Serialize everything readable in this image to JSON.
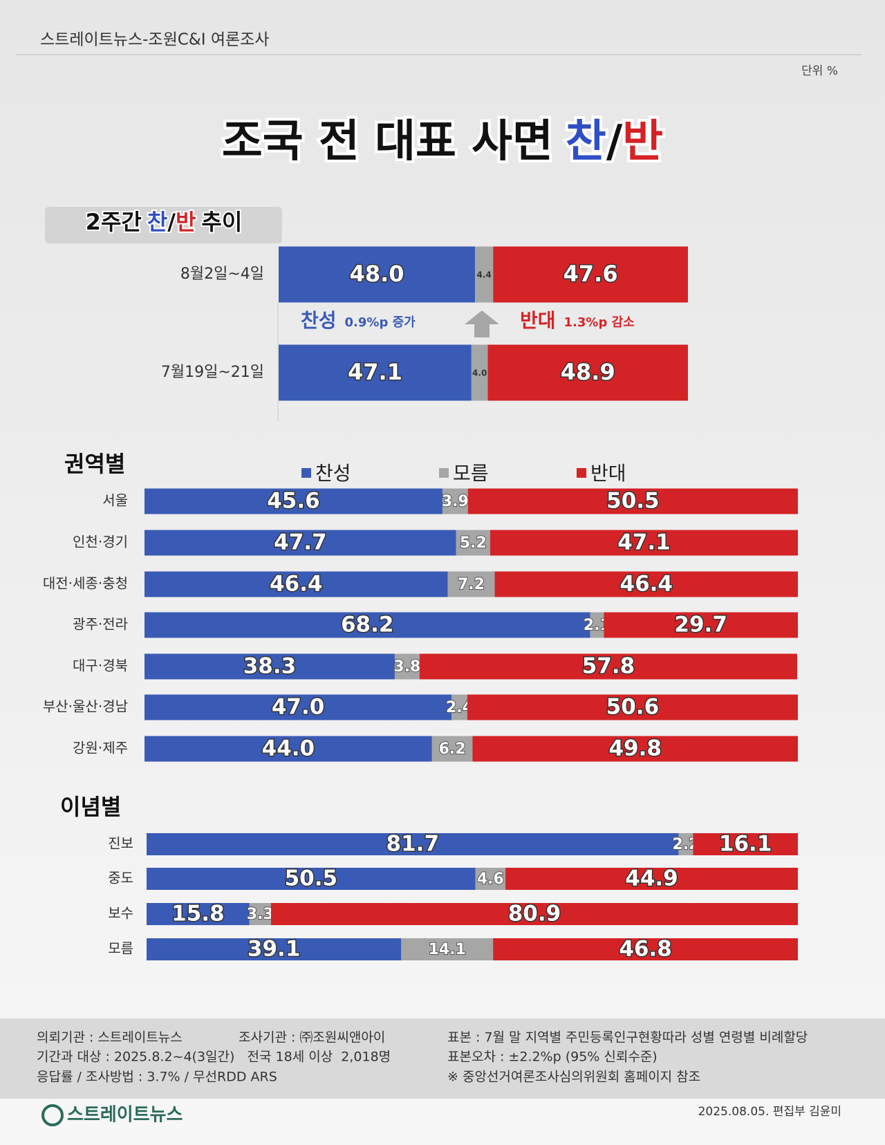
{
  "header": {
    "source": "스트레이트뉴스-조원C&I 여론조사",
    "unit": "단위 %",
    "title": [
      "조국 전 대표 사면",
      "찬",
      "/",
      "반"
    ]
  },
  "chart_data": [
    {
      "type": "stacked_bar",
      "title": [
        "2주간",
        "찬",
        "/",
        "반",
        "추이"
      ],
      "categories": [
        "8월2일~4일",
        "7월19일~21일"
      ],
      "xlim": [
        0,
        100
      ],
      "legend": false,
      "series": [
        {
          "color": "#3a5bb5",
          "values": [
            48.0,
            47.1
          ],
          "value_labels": [
            "48.0",
            "47.1"
          ]
        },
        {
          "color": "#a6a6a6",
          "values": [
            4.4,
            4.0
          ],
          "value_labels": [
            "4.4",
            "4.0"
          ]
        },
        {
          "color": "#d42326",
          "values": [
            47.6,
            48.9
          ]
        }
      ],
      "annotations": [
        {
          "text": "찬성",
          "note": "0.9%p 증가"
        },
        {
          "text": "반대",
          "note": "1.3%p 감소"
        }
      ]
    },
    {
      "type": "stacked_bar",
      "title": "권역별",
      "categories": [
        "서울",
        "인천·경기",
        "대전·세종·충청",
        "광주·전라",
        "대구·경북",
        "부산·울산·경남",
        "강원·제주"
      ],
      "xlim": [
        0,
        100
      ],
      "legend": true,
      "series": [
        {
          "name": "찬성",
          "color": "#3a5bb5",
          "values": [
            45.6,
            47.7,
            46.4,
            68.2,
            38.3,
            47.0,
            44.0
          ],
          "value_labels": [
            "45.6",
            "47.7",
            "46.4",
            "68.2",
            "38.3",
            "47.0",
            "44.0"
          ]
        },
        {
          "name": "모름",
          "color": "#a6a6a6",
          "values": [
            3.9,
            5.2,
            7.2,
            2.1,
            3.8,
            2.4,
            6.2
          ]
        },
        {
          "name": "반대",
          "color": "#d42326",
          "values": [
            50.5,
            47.1,
            46.4,
            29.7,
            57.8,
            50.6,
            49.8
          ]
        }
      ]
    },
    {
      "type": "stacked_bar",
      "title": "이념별",
      "categories": [
        "진보",
        "중도",
        "보수",
        "모름"
      ],
      "xlim": [
        0,
        100
      ],
      "legend": false,
      "series": [
        {
          "color": "#3a5bb5",
          "values": [
            81.7,
            50.5,
            15.8,
            39.1
          ]
        },
        {
          "color": "#a6a6a6",
          "values": [
            2.2,
            4.6,
            3.3,
            14.1
          ]
        },
        {
          "color": "#d42326",
          "values": [
            16.1,
            44.9,
            80.9,
            46.8
          ]
        }
      ]
    }
  ],
  "footer": {
    "lines": [
      "의뢰기관 : 스트레이트뉴스",
      "조사기관 : ㈜조원씨앤아이",
      "기간과 대상 : 2025.8.2~4(3일간)   전국 18세 이상  2,018명",
      "응답률 / 조사방법 : 3.7% / 무선RDD ARS",
      "표본 : 7월 말 지역별 주민등록인구현황따라 성별 연령별 비례할당",
      "표본오차 : ±2.2%p (95% 신뢰수준)",
      "※ 중앙선거여론조사심의위원회 홈페이지 참조"
    ],
    "logo": "스트레이트뉴스",
    "credit": "2025.08.05. 편집부 김윤미"
  }
}
